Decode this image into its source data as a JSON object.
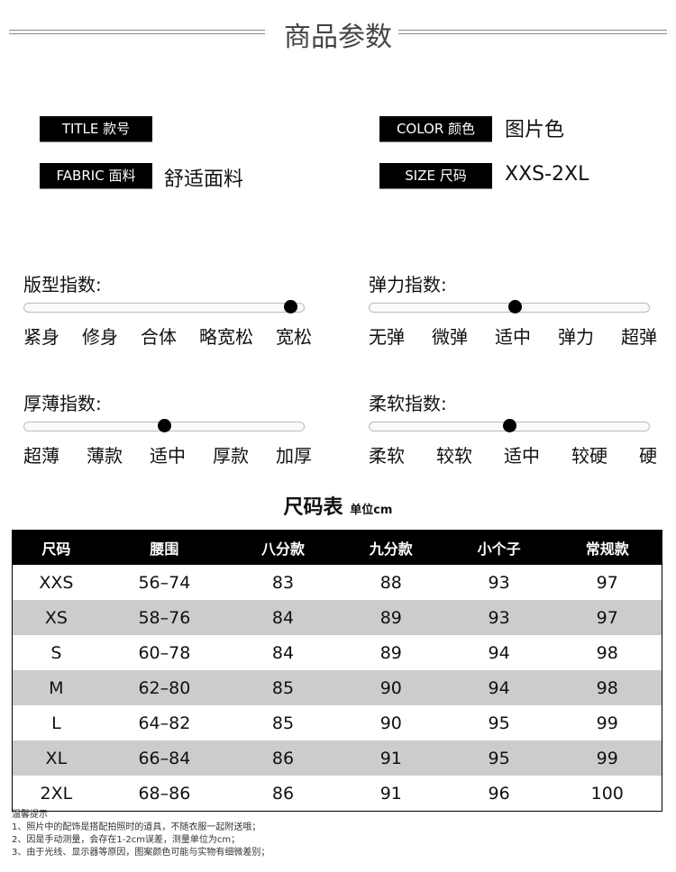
{
  "header": {
    "title": "商品参数"
  },
  "params": [
    {
      "label": "TITLE 款号",
      "value": ""
    },
    {
      "label": "COLOR 颜色",
      "value": "图片色"
    },
    {
      "label": "FABRIC 面料",
      "value": "舒适面料"
    },
    {
      "label": "SIZE 尺码",
      "value": "XXS-2XL"
    }
  ],
  "indices": [
    {
      "title": "版型指数:",
      "options": [
        "紧身",
        "修身",
        "合体",
        "略宽松",
        "宽松"
      ],
      "level": 0.95
    },
    {
      "title": "弹力指数:",
      "options": [
        "无弹",
        "微弹",
        "适中",
        "弹力",
        "超弹"
      ],
      "level": 0.52
    },
    {
      "title": "厚薄指数:",
      "options": [
        "超薄",
        "薄款",
        "适中",
        "厚款",
        "加厚"
      ],
      "level": 0.5
    },
    {
      "title": "柔软指数:",
      "options": [
        "柔软",
        "较软",
        "适中",
        "较硬",
        "硬"
      ],
      "level": 0.5
    }
  ],
  "size_table": {
    "title": "尺码表",
    "unit": "单位cm",
    "headers": [
      "尺码",
      "腰围",
      "八分款",
      "九分款",
      "小个子",
      "常规款"
    ],
    "rows": [
      [
        "XXS",
        "56–74",
        "83",
        "88",
        "93",
        "97"
      ],
      [
        "XS",
        "58–76",
        "84",
        "89",
        "93",
        "97"
      ],
      [
        "S",
        "60–78",
        "84",
        "89",
        "94",
        "98"
      ],
      [
        "M",
        "62–80",
        "85",
        "90",
        "94",
        "98"
      ],
      [
        "L",
        "64–82",
        "85",
        "90",
        "95",
        "99"
      ],
      [
        "XL",
        "66–84",
        "86",
        "91",
        "95",
        "99"
      ],
      [
        "2XL",
        "68–86",
        "86",
        "91",
        "96",
        "100"
      ]
    ]
  },
  "notes": [
    "温馨提示",
    "1、照片中的配饰是搭配拍照时的道具，不随衣服一起附送哦；",
    "2、因是手动测量，会存在1-2cm误差，测量单位为cm；",
    "3、由于光线、显示器等原因，图案颜色可能与实物有细微差别；"
  ]
}
